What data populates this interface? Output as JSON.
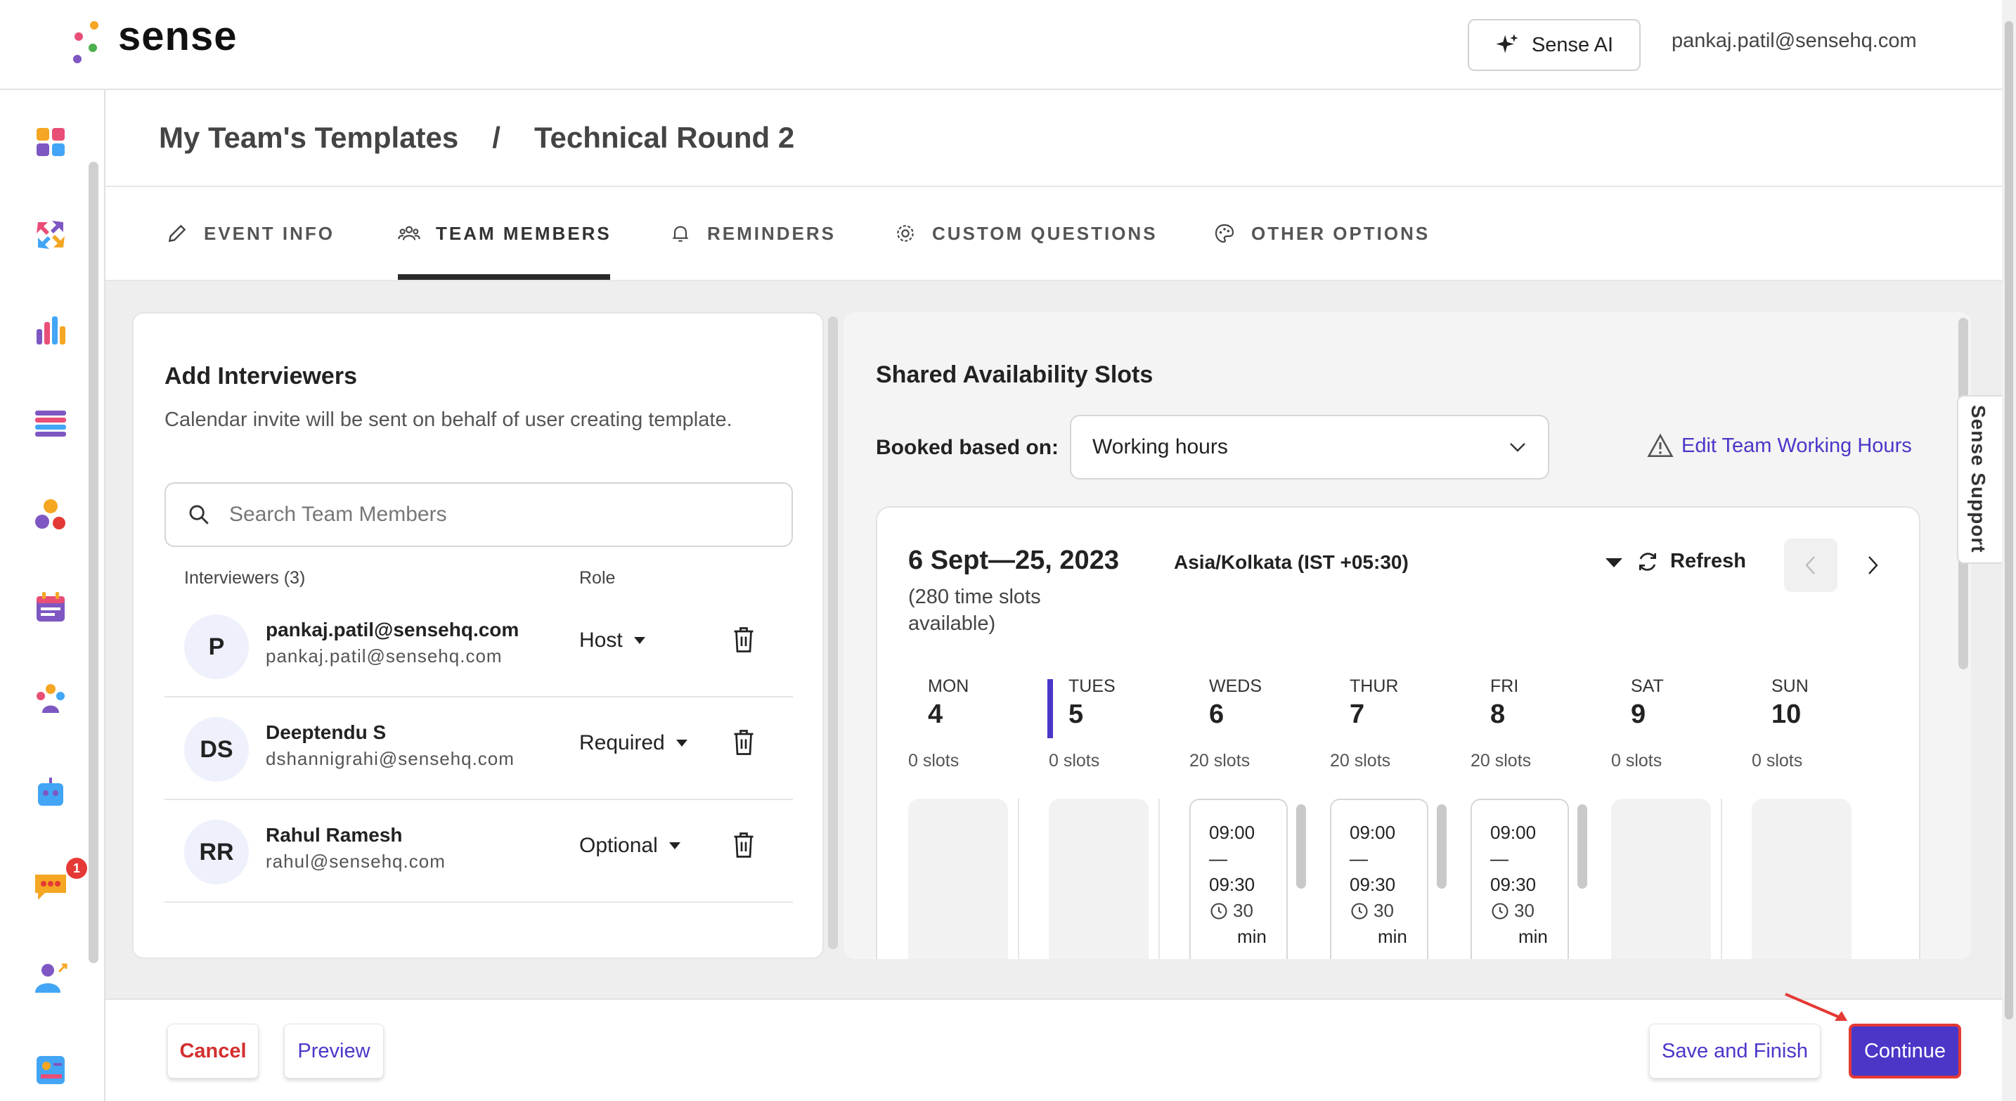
{
  "header": {
    "brand": "sense",
    "sense_ai_label": "Sense AI",
    "user_email": "pankaj.patil@sensehq.com"
  },
  "sidebar": {
    "icons": [
      "dashboard-icon",
      "arrows-icon",
      "analytics-icon",
      "list-icon",
      "shapes-icon",
      "calendar-icon",
      "people-icon",
      "bot-icon",
      "chat-icon",
      "user-assign-icon",
      "badge-icon"
    ],
    "chat_badge": "1"
  },
  "breadcrumb": {
    "parent": "My Team's Templates",
    "separator": "/",
    "current": "Technical Round 2"
  },
  "tabs": [
    {
      "label": "EVENT INFO",
      "icon": "pencil-icon"
    },
    {
      "label": "TEAM MEMBERS",
      "icon": "team-icon",
      "active": true
    },
    {
      "label": "REMINDERS",
      "icon": "bell-icon"
    },
    {
      "label": "CUSTOM QUESTIONS",
      "icon": "gear-icon"
    },
    {
      "label": "OTHER OPTIONS",
      "icon": "palette-icon"
    }
  ],
  "interviewers": {
    "title": "Add Interviewers",
    "description": "Calendar invite will be sent on behalf of user creating template.",
    "search_placeholder": "Search Team Members",
    "col_interviewers": "Interviewers (3)",
    "col_role": "Role",
    "members": [
      {
        "initials": "P",
        "name": "pankaj.patil@sensehq.com",
        "email": "pankaj.patil@sensehq.com",
        "role": "Host"
      },
      {
        "initials": "DS",
        "name": "Deeptendu S",
        "email": "dshannigrahi@sensehq.com",
        "role": "Required"
      },
      {
        "initials": "RR",
        "name": "Rahul Ramesh",
        "email": "rahul@sensehq.com",
        "role": "Optional"
      }
    ]
  },
  "availability": {
    "title": "Shared Availability Slots",
    "booked_label": "Booked based on:",
    "booked_value": "Working hours",
    "edit_link": "Edit Team Working Hours",
    "range": "6 Sept—25, 2023",
    "slots_available": "(280 time slots available)",
    "timezone": "Asia/Kolkata (IST +05:30)",
    "refresh_label": "Refresh",
    "days": [
      {
        "name": "MON",
        "num": "4",
        "slots": "0 slots"
      },
      {
        "name": "TUES",
        "num": "5",
        "slots": "0 slots"
      },
      {
        "name": "WEDS",
        "num": "6",
        "slots": "20 slots"
      },
      {
        "name": "THUR",
        "num": "7",
        "slots": "20 slots"
      },
      {
        "name": "FRI",
        "num": "8",
        "slots": "20 slots"
      },
      {
        "name": "SAT",
        "num": "9",
        "slots": "0 slots"
      },
      {
        "name": "SUN",
        "num": "10",
        "slots": "0 slots"
      }
    ],
    "slot": {
      "start": "09:00",
      "dash": "—",
      "end": "09:30",
      "dur": "30",
      "unit": "min"
    }
  },
  "support_tab": "Sense Support",
  "footer": {
    "cancel": "Cancel",
    "preview": "Preview",
    "save": "Save and Finish",
    "continue": "Continue"
  },
  "colors": {
    "accent": "#4a37c8",
    "danger": "#d32f2f",
    "highlight": "#e53935"
  }
}
